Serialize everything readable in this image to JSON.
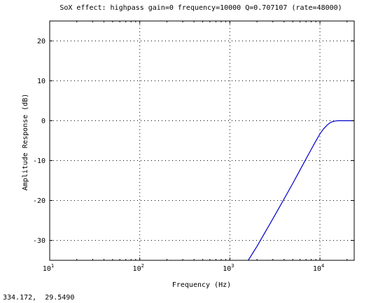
{
  "status_readout": "334.172,  29.5490",
  "chart_data": {
    "type": "line",
    "title": "SoX effect: highpass gain=0 frequency=10000 Q=0.707107 (rate=48000)",
    "xlabel": "Frequency (Hz)",
    "ylabel": "Amplitude Response (dB)",
    "x_scale": "log",
    "xlim": [
      10,
      24000
    ],
    "ylim": [
      -35,
      25
    ],
    "x_ticks": [
      {
        "base": "10",
        "exp": "1",
        "value": 10
      },
      {
        "base": "10",
        "exp": "2",
        "value": 100
      },
      {
        "base": "10",
        "exp": "3",
        "value": 1000
      },
      {
        "base": "10",
        "exp": "4",
        "value": 10000
      }
    ],
    "y_ticks": [
      "20",
      "10",
      "0",
      "-10",
      "-20",
      "-30"
    ],
    "y_tick_values": [
      20,
      10,
      0,
      -10,
      -20,
      -30
    ],
    "grid": true,
    "line_color": "#0000cc",
    "series": [
      {
        "x": [
          1600,
          2000,
          3000,
          4000,
          5000,
          6000,
          7000,
          8000,
          9000,
          10000,
          11000,
          12000,
          13000,
          14000,
          15000,
          16000,
          17000,
          18000,
          20000,
          22000,
          24000
        ],
        "values": [
          -35,
          -31.5,
          -24.6,
          -19.6,
          -15.7,
          -12.4,
          -9.6,
          -7.2,
          -5.1,
          -3.3,
          -2.0,
          -1.1,
          -0.5,
          -0.2,
          -0.05,
          0,
          0,
          0,
          0,
          0,
          0
        ]
      }
    ]
  }
}
